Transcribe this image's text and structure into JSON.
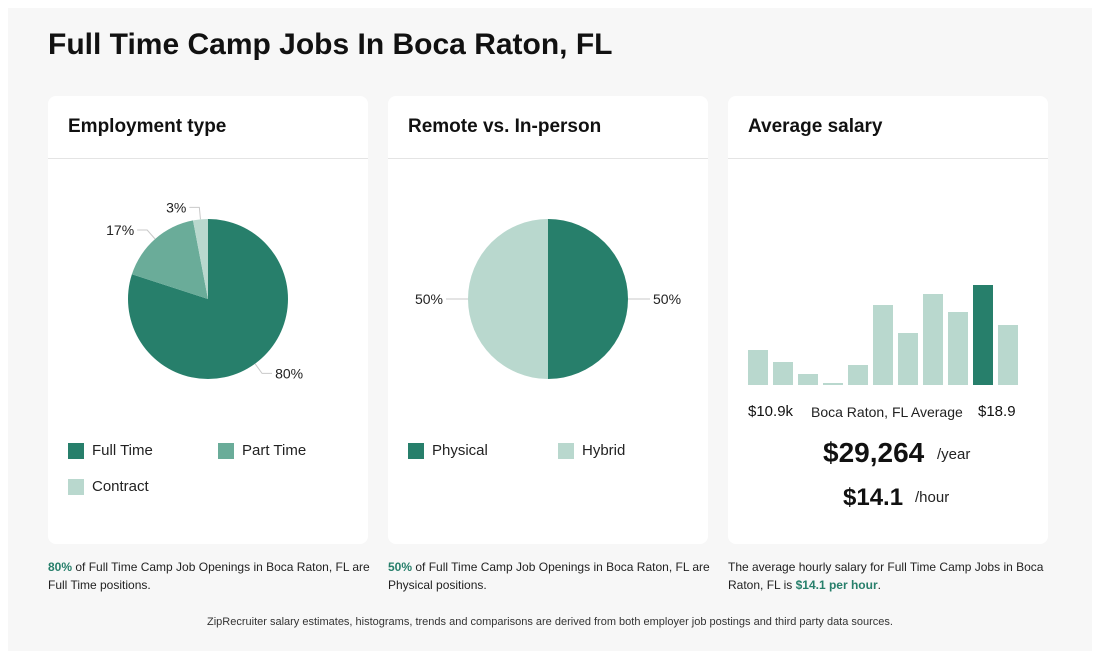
{
  "title": "Full Time Camp Jobs In Boca Raton, FL",
  "colors": {
    "dark": "#277f6b",
    "mid": "#6aac99",
    "light": "#b9d8ce",
    "accent": "#277f6b"
  },
  "cards": {
    "employment": {
      "title": "Employment type",
      "legend": [
        "Full Time",
        "Part Time",
        "Contract"
      ],
      "footnote_pct": "80%",
      "footnote_text": " of Full Time Camp Job Openings in Boca Raton, FL are Full Time positions."
    },
    "remote": {
      "title": "Remote vs. In-person",
      "legend": [
        "Physical",
        "Hybrid"
      ],
      "footnote_pct": "50%",
      "footnote_text": " of Full Time Camp Job Openings in Boca Raton, FL are Physical positions."
    },
    "salary": {
      "title": "Average salary",
      "axis_min": "$10.9k",
      "axis_mid": "Boca Raton, FL Average",
      "axis_max": "$18.9",
      "yearly": "$29,264",
      "yearly_unit": "/year",
      "hourly": "$14.1",
      "hourly_unit": "/hour",
      "footnote_pre": "The average hourly salary for Full Time Camp Jobs in Boca Raton, FL is ",
      "footnote_hl": "$14.1 per hour",
      "footnote_post": "."
    }
  },
  "disclaimer": "ZipRecruiter salary estimates, histograms, trends and comparisons are derived from both employer job postings and third party data sources.",
  "chart_data": [
    {
      "type": "pie",
      "title": "Employment type",
      "slices": [
        {
          "label": "Full Time",
          "value": 80,
          "color": "#277f6b",
          "text": "80%"
        },
        {
          "label": "Part Time",
          "value": 17,
          "color": "#6aac99",
          "text": "17%"
        },
        {
          "label": "Contract",
          "value": 3,
          "color": "#b9d8ce",
          "text": "3%"
        }
      ]
    },
    {
      "type": "pie",
      "title": "Remote vs. In-person",
      "slices": [
        {
          "label": "Physical",
          "value": 50,
          "color": "#277f6b",
          "text": "50%"
        },
        {
          "label": "Hybrid",
          "value": 50,
          "color": "#b9d8ce",
          "text": "50%"
        }
      ]
    },
    {
      "type": "bar",
      "title": "Average salary",
      "values": [
        35,
        23,
        11,
        2,
        20,
        80,
        52,
        91,
        73,
        100,
        60
      ],
      "highlight_index": 9,
      "ylim": [
        0,
        100
      ]
    }
  ]
}
